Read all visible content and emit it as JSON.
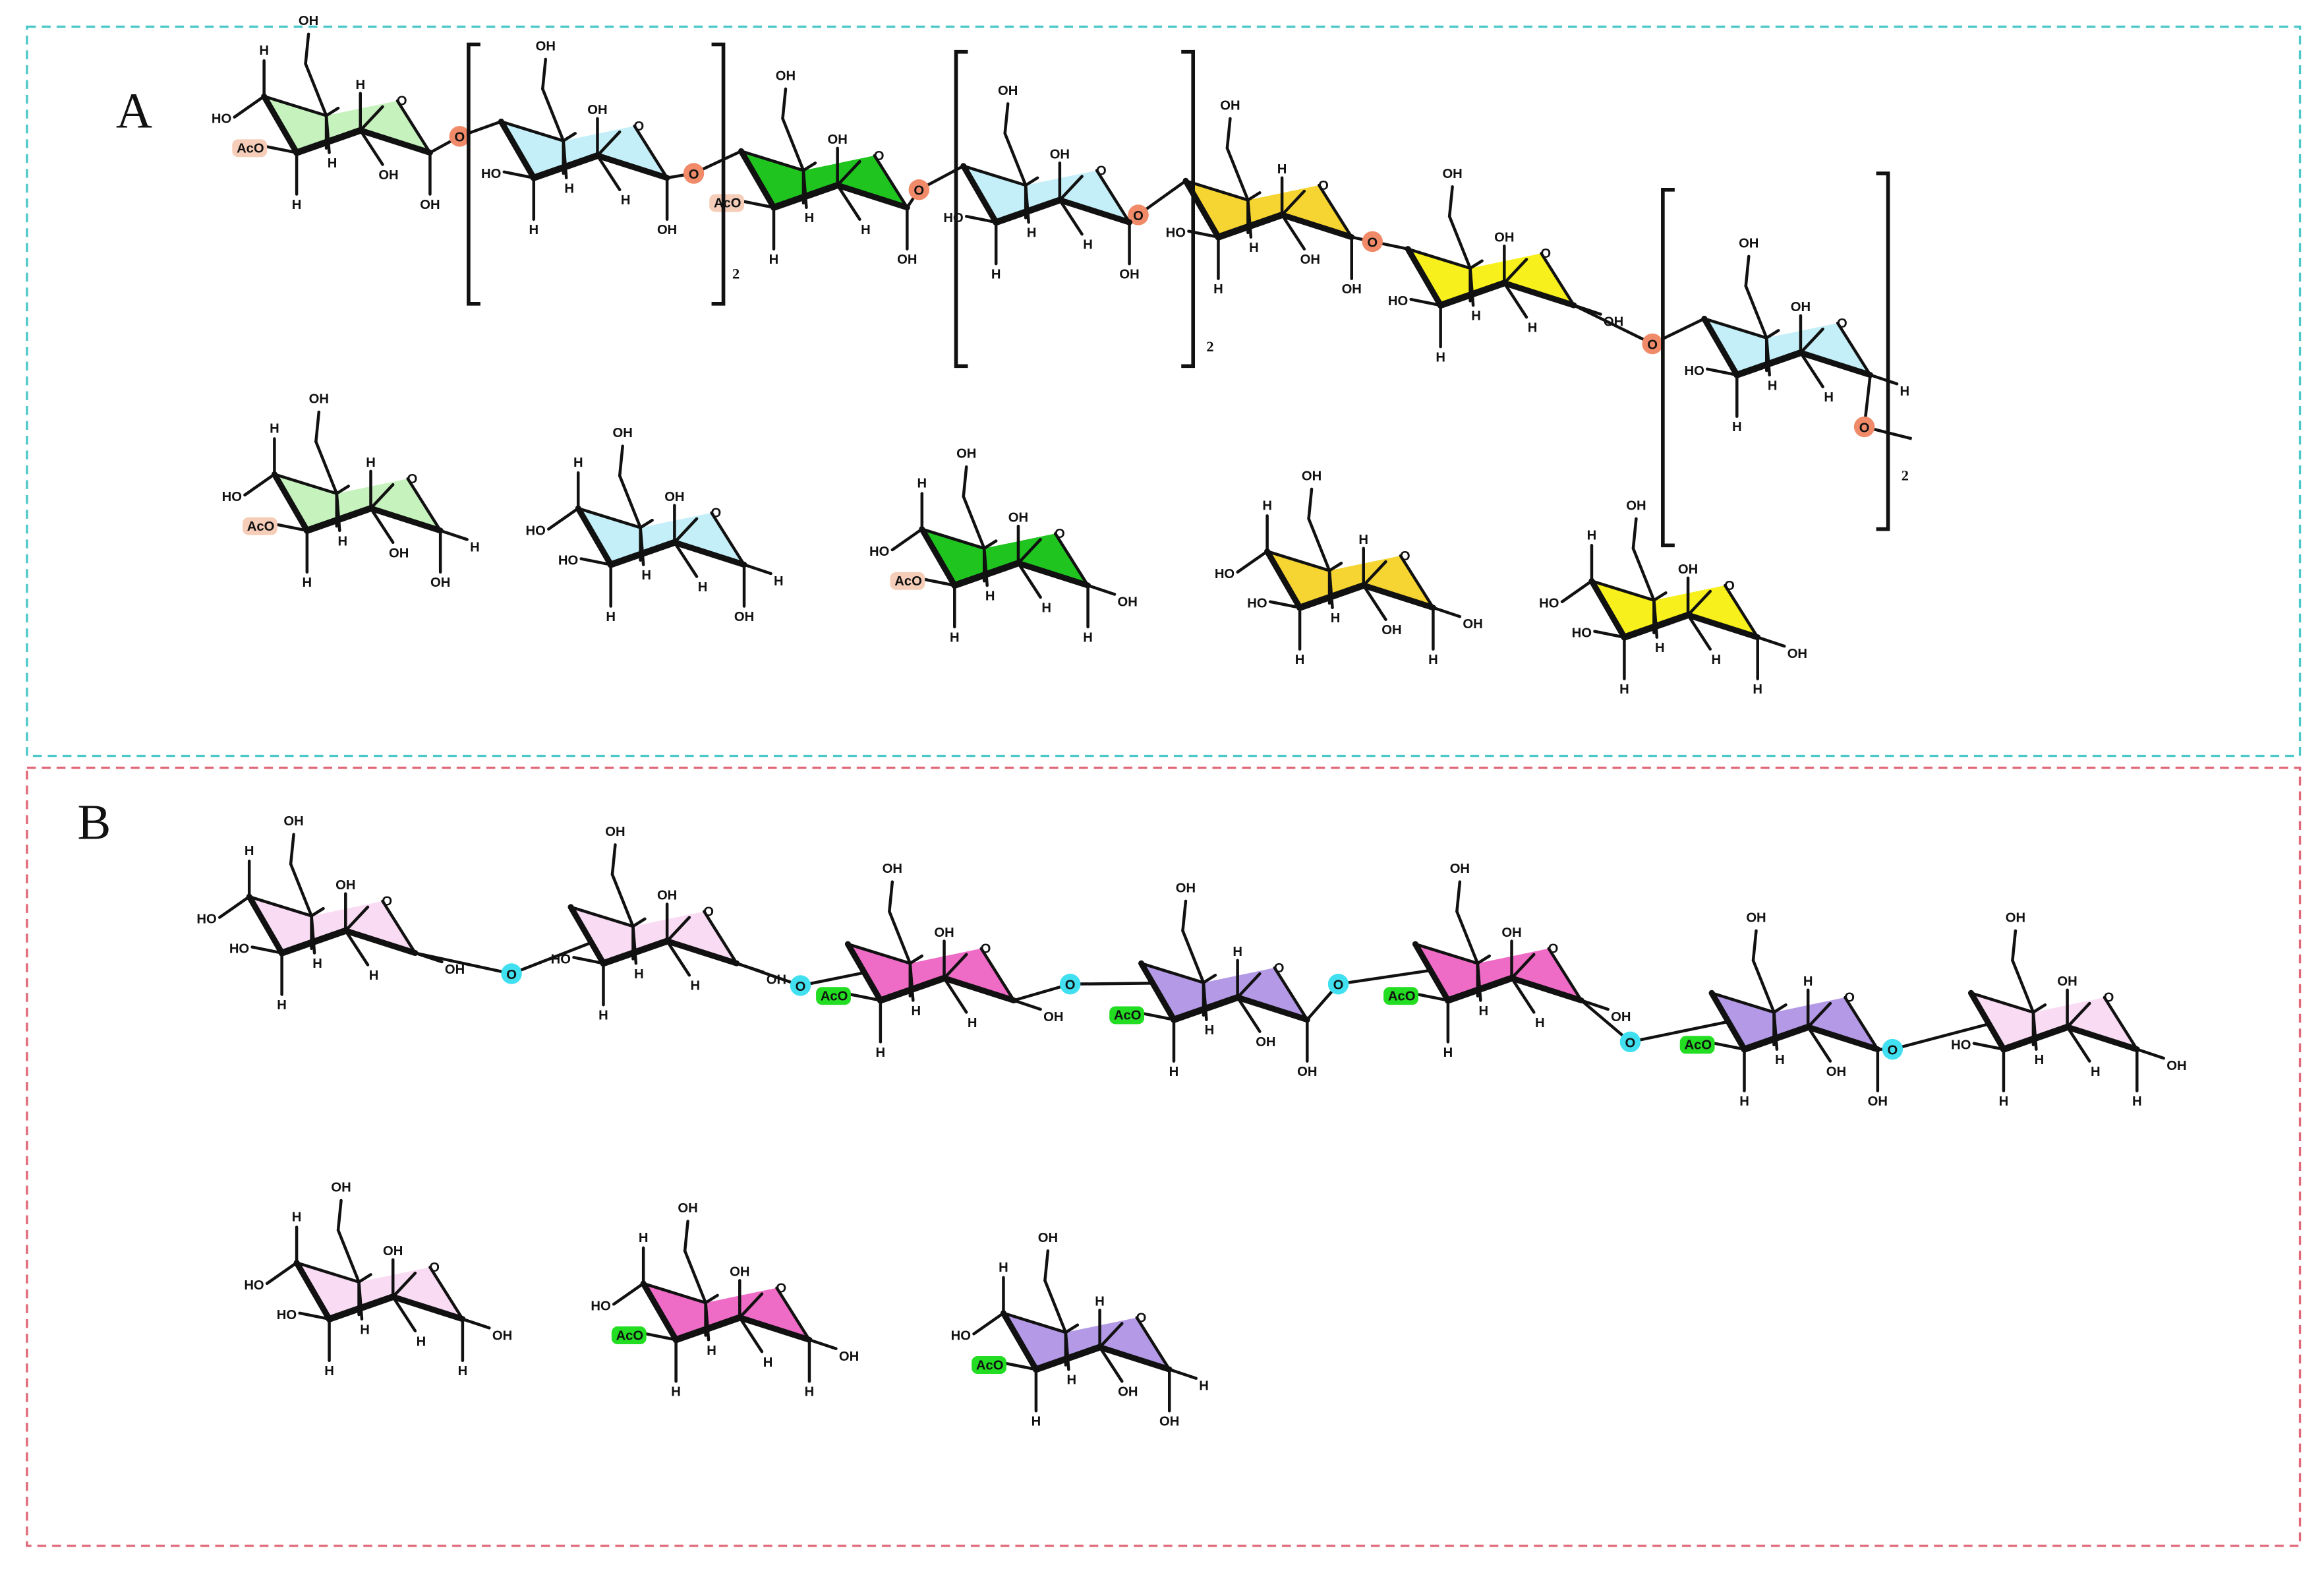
{
  "colors": {
    "panel_a_border": "#4cc8c8",
    "panel_b_border": "#e06878",
    "light_green": "#c6f2bd",
    "light_blue": "#c4eff8",
    "green": "#1fc41f",
    "gold": "#f6d431",
    "yellow": "#f7f01c",
    "light_pink": "#f9dcf4",
    "hot_pink": "#ef6cc6",
    "purple": "#b49ae6",
    "a_link": "#f08a68",
    "b_link": "#40e0f0",
    "a_acetyl": "#f5cdb8",
    "b_acetyl": "#22dd22"
  },
  "panel_a": {
    "label": "A",
    "link_label": "O",
    "repeat_labels": [
      "2",
      "2",
      "2"
    ],
    "chain": [
      {
        "color": "light_green",
        "labels": {
          "c4_top": "H",
          "c5_top": "OH",
          "c4_left": "HO",
          "c3_left": "AcO",
          "c2_top": "H",
          "c5_bottom": "H",
          "c3_bottom": "H",
          "c2_bottom": "OH",
          "c1_bottom": "OH"
        },
        "acetyl": "c3_left"
      },
      {
        "color": "light_blue",
        "labels": {
          "c5_top": "OH",
          "c2_top": "OH",
          "c3_left": "HO",
          "c3_bottom": "H",
          "c5_bottom": "H",
          "c2_bottom": "H",
          "c1_bottom": "OH"
        }
      },
      {
        "color": "green",
        "labels": {
          "c5_top": "OH",
          "c2_top": "OH",
          "c3_left": "AcO",
          "c3_bottom": "H",
          "c5_bottom": "H",
          "c2_bottom": "H",
          "c1_bottom": "OH"
        },
        "acetyl": "c3_left"
      },
      {
        "color": "light_blue",
        "labels": {
          "c5_top": "OH",
          "c2_top": "OH",
          "c3_left": "HO",
          "c3_bottom": "H",
          "c5_bottom": "H",
          "c2_bottom": "H",
          "c1_bottom": "OH"
        }
      },
      {
        "color": "gold",
        "labels": {
          "c5_top": "OH",
          "c2_top": "H",
          "c3_left": "HO",
          "c3_bottom": "H",
          "c5_bottom": "H",
          "c2_bottom": "OH",
          "c1_bottom": "OH"
        }
      },
      {
        "color": "yellow",
        "labels": {
          "c5_top": "OH",
          "c2_top": "OH",
          "c3_left": "HO",
          "c3_bottom": "H",
          "c5_bottom": "H",
          "c2_bottom": "H",
          "c1_right": "OH"
        }
      },
      {
        "color": "light_blue",
        "labels": {
          "c5_top": "OH",
          "c2_top": "OH",
          "c3_left": "HO",
          "c3_bottom": "H",
          "c5_bottom": "H",
          "c2_bottom": "H",
          "c1_right": "H"
        }
      }
    ],
    "monomers": [
      {
        "color": "light_green",
        "labels": {
          "c4_top": "H",
          "c5_top": "OH",
          "c4_left": "HO",
          "c3_left": "AcO",
          "c2_top": "H",
          "c5_bottom": "H",
          "c3_bottom": "H",
          "c2_bottom": "OH",
          "c1_bottom": "OH",
          "c1_right": "H"
        },
        "acetyl": "c3_left"
      },
      {
        "color": "light_blue",
        "labels": {
          "c4_top": "H",
          "c5_top": "OH",
          "c4_left": "HO",
          "c3_left": "HO",
          "c2_top": "OH",
          "c5_bottom": "H",
          "c3_bottom": "H",
          "c2_bottom": "H",
          "c1_bottom": "OH",
          "c1_right": "H"
        }
      },
      {
        "color": "green",
        "labels": {
          "c4_top": "H",
          "c5_top": "OH",
          "c4_left": "HO",
          "c3_left": "AcO",
          "c2_top": "OH",
          "c5_bottom": "H",
          "c3_bottom": "H",
          "c2_bottom": "H",
          "c1_bottom": "H",
          "c1_right": "OH"
        },
        "acetyl": "c3_left"
      },
      {
        "color": "gold",
        "labels": {
          "c4_top": "H",
          "c5_top": "OH",
          "c4_left": "HO",
          "c3_left": "HO",
          "c2_top": "H",
          "c5_bottom": "H",
          "c3_bottom": "H",
          "c2_bottom": "OH",
          "c1_bottom": "H",
          "c1_right": "OH"
        }
      },
      {
        "color": "yellow",
        "labels": {
          "c4_top": "H",
          "c5_top": "OH",
          "c4_left": "HO",
          "c3_left": "HO",
          "c2_top": "OH",
          "c5_bottom": "H",
          "c3_bottom": "H",
          "c2_bottom": "H",
          "c1_bottom": "H",
          "c1_right": "OH"
        }
      }
    ]
  },
  "panel_b": {
    "label": "B",
    "link_label": "O",
    "chain": [
      {
        "color": "light_pink",
        "labels": {
          "c4_top": "H",
          "c5_top": "OH",
          "c4_left": "HO",
          "c3_left": "HO",
          "c2_top": "OH",
          "c5_bottom": "H",
          "c3_bottom": "H",
          "c2_bottom": "H",
          "c1_right": "OH"
        }
      },
      {
        "color": "light_pink",
        "labels": {
          "c5_top": "OH",
          "c2_top": "OH",
          "c3_left": "HO",
          "c5_bottom": "H",
          "c3_bottom": "H",
          "c2_bottom": "H",
          "c1_right": "OH"
        }
      },
      {
        "color": "hot_pink",
        "labels": {
          "c5_top": "OH",
          "c2_top": "OH",
          "c3_left": "AcO",
          "c5_bottom": "H",
          "c3_bottom": "H",
          "c2_bottom": "H",
          "c1_right": "OH"
        },
        "acetyl": "c3_left"
      },
      {
        "color": "purple",
        "labels": {
          "c5_top": "OH",
          "c2_top": "H",
          "c3_left": "AcO",
          "c5_bottom": "H",
          "c3_bottom": "H",
          "c2_bottom": "OH",
          "c1_bottom": "OH"
        },
        "acetyl": "c3_left"
      },
      {
        "color": "hot_pink",
        "labels": {
          "c5_top": "OH",
          "c2_top": "OH",
          "c3_left": "AcO",
          "c5_bottom": "H",
          "c3_bottom": "H",
          "c2_bottom": "H",
          "c1_right": "OH"
        },
        "acetyl": "c3_left"
      },
      {
        "color": "purple",
        "labels": {
          "c5_top": "OH",
          "c2_top": "H",
          "c3_left": "AcO",
          "c5_bottom": "H",
          "c3_bottom": "H",
          "c2_bottom": "OH",
          "c1_bottom": "OH"
        },
        "acetyl": "c3_left"
      },
      {
        "color": "light_pink",
        "labels": {
          "c5_top": "OH",
          "c2_top": "OH",
          "c3_left": "HO",
          "c5_bottom": "H",
          "c3_bottom": "H",
          "c2_bottom": "H",
          "c1_right": "OH",
          "c1_bottom": "H"
        }
      }
    ],
    "monomers": [
      {
        "color": "light_pink",
        "labels": {
          "c4_top": "H",
          "c5_top": "OH",
          "c4_left": "HO",
          "c3_left": "HO",
          "c2_top": "OH",
          "c5_bottom": "H",
          "c3_bottom": "H",
          "c2_bottom": "H",
          "c1_bottom": "H",
          "c1_right": "OH"
        }
      },
      {
        "color": "hot_pink",
        "labels": {
          "c4_top": "H",
          "c5_top": "OH",
          "c4_left": "HO",
          "c3_left": "AcO",
          "c2_top": "OH",
          "c5_bottom": "H",
          "c3_bottom": "H",
          "c2_bottom": "H",
          "c1_bottom": "H",
          "c1_right": "OH"
        },
        "acetyl": "c3_left"
      },
      {
        "color": "purple",
        "labels": {
          "c4_top": "H",
          "c5_top": "OH",
          "c4_left": "HO",
          "c3_left": "AcO",
          "c2_top": "H",
          "c5_bottom": "H",
          "c3_bottom": "H",
          "c2_bottom": "OH",
          "c1_bottom": "OH",
          "c1_right": "H"
        },
        "acetyl": "c3_left"
      }
    ]
  }
}
